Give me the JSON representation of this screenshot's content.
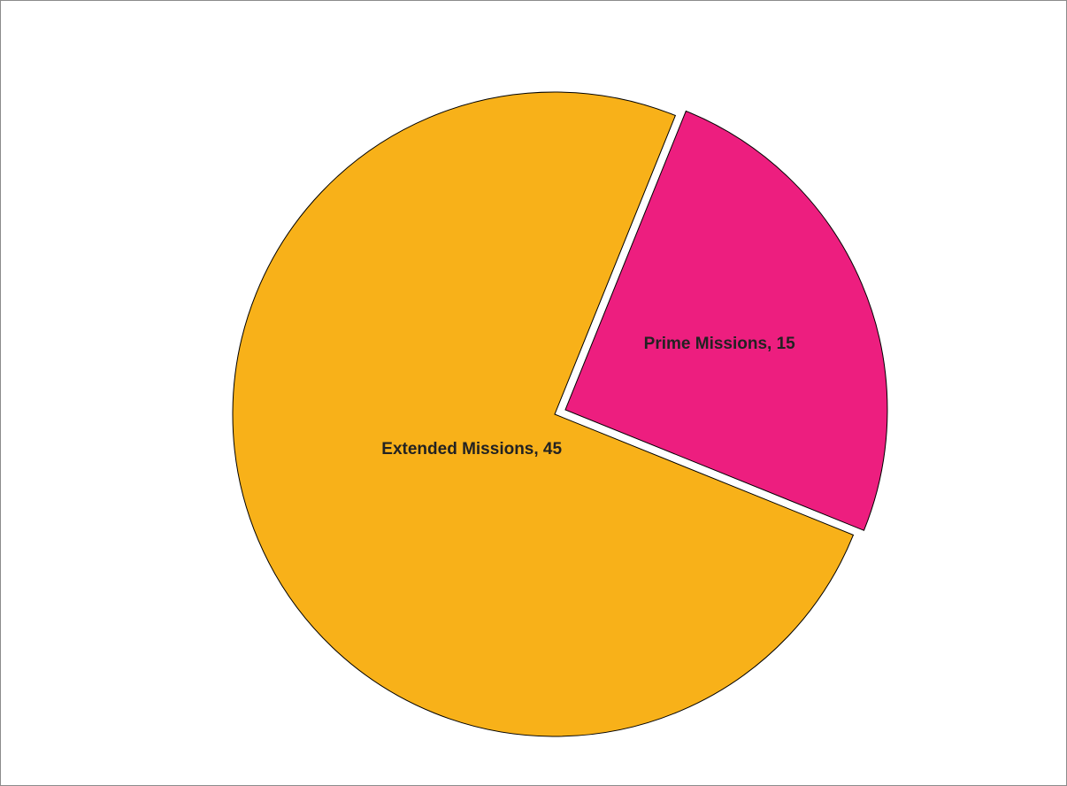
{
  "chart_data": {
    "type": "pie",
    "title": "",
    "slices": [
      {
        "name": "Extended Missions",
        "value": 45,
        "color": "#F8B119",
        "label": "Extended Missions, 45"
      },
      {
        "name": "Prime Missions",
        "value": 15,
        "color": "#ED1E7F",
        "label": "Prime Missions, 15",
        "exploded": true
      }
    ],
    "legend": "none"
  }
}
